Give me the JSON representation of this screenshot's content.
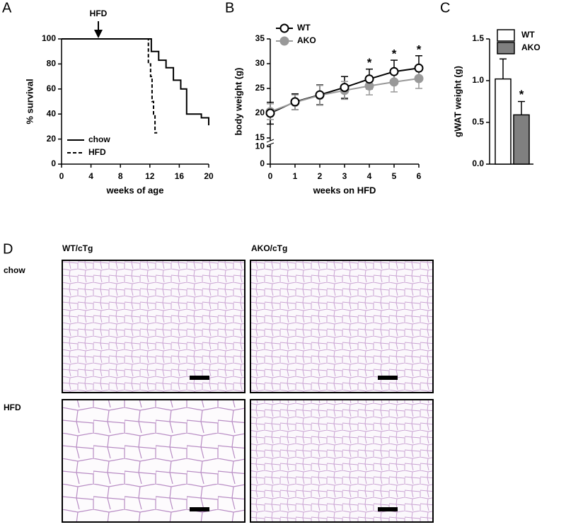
{
  "chart_data": [
    {
      "type": "line",
      "panel": "A",
      "xlabel": "weeks of age",
      "ylabel": "% survival",
      "xlim": [
        0,
        20
      ],
      "xticks": [
        0,
        4,
        8,
        12,
        16,
        20
      ],
      "ylim": [
        0,
        100
      ],
      "yticks": [
        0,
        20,
        40,
        60,
        80,
        100
      ],
      "annotation": {
        "text": "HFD",
        "x": 5
      },
      "legend": "lower left",
      "series": [
        {
          "name": "chow",
          "color": "#000000",
          "dash": false,
          "x": [
            0,
            12.2,
            12.2,
            13.2,
            13.2,
            14.2,
            14.2,
            15.2,
            15.2,
            16.2,
            16.2,
            17,
            17,
            19,
            19,
            20,
            20
          ],
          "values": [
            100,
            100,
            90,
            90,
            83,
            83,
            77,
            77,
            67,
            67,
            60,
            60,
            40,
            40,
            37,
            37,
            31
          ]
        },
        {
          "name": "HFD",
          "color": "#000000",
          "dash": true,
          "x": [
            0,
            11.8,
            11.8,
            12.1,
            12.1,
            12.3,
            12.3,
            12.5,
            12.5,
            12.7,
            12.7,
            13
          ],
          "values": [
            100,
            100,
            80,
            80,
            70,
            70,
            50,
            50,
            40,
            40,
            25,
            25
          ]
        }
      ]
    },
    {
      "type": "line",
      "panel": "B",
      "xlabel": "weeks on HFD",
      "ylabel": "body weight (g)",
      "xlim": [
        0,
        6
      ],
      "xticks": [
        0,
        1,
        2,
        3,
        4,
        5,
        6
      ],
      "ylim": [
        0,
        35
      ],
      "yticks": [
        0,
        10,
        15,
        20,
        25,
        30,
        35
      ],
      "ybreak": 15,
      "legend": "upper left",
      "significance": [
        null,
        null,
        null,
        null,
        "*",
        "*",
        "*"
      ],
      "series": [
        {
          "name": "WT",
          "color": "#000000",
          "marker": "open-circle",
          "x": [
            0,
            1,
            2,
            3,
            4,
            5,
            6
          ],
          "values": [
            20,
            22.3,
            23.7,
            25.2,
            26.9,
            28.4,
            29.1
          ],
          "errors": [
            2.2,
            1.6,
            2.0,
            2.2,
            2.0,
            2.3,
            2.5
          ]
        },
        {
          "name": "AKO",
          "color": "#999999",
          "marker": "circle",
          "x": [
            0,
            1,
            2,
            3,
            4,
            5,
            6
          ],
          "values": [
            20.3,
            22.2,
            23.6,
            24.6,
            25.5,
            26.3,
            27.0
          ],
          "errors": [
            1.6,
            1.5,
            2.0,
            1.8,
            1.8,
            2.0,
            2.0
          ]
        }
      ]
    },
    {
      "type": "bar",
      "panel": "C",
      "ylabel": "gWAT weight (g)",
      "categories": [
        null
      ],
      "ylim": [
        0,
        1.5
      ],
      "yticks": [
        {
          "value": 0,
          "label": "0.0"
        },
        0.5,
        {
          "value": 1,
          "label": "1.0"
        },
        1.5
      ],
      "legend": "upper right",
      "series": [
        {
          "name": "WT",
          "color": "#ffffff",
          "values": [
            1.02
          ],
          "errors": [
            0.24
          ]
        },
        {
          "name": "AKO",
          "color": "#808080",
          "values": [
            0.59
          ],
          "errors": [
            0.16
          ],
          "significance": [
            "*"
          ]
        }
      ]
    }
  ],
  "panel_d": {
    "panel": "D",
    "columns": [
      "WT/cTg",
      "AKO/cTg"
    ],
    "rows": [
      "chow",
      "HFD"
    ]
  }
}
